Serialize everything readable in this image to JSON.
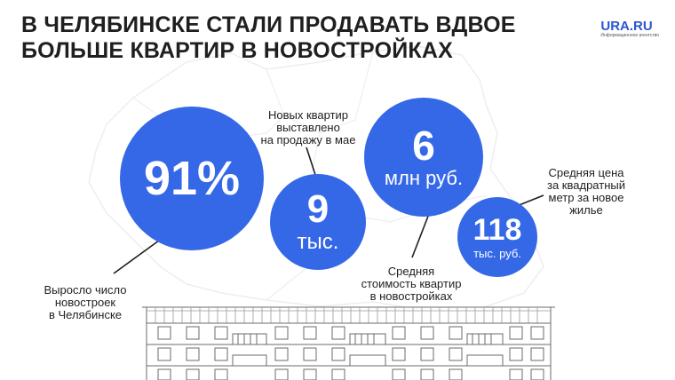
{
  "header": {
    "title_line1": "В ЧЕЛЯБИНСКЕ СТАЛИ ПРОДАВАТЬ ВДВОЕ",
    "title_line2": "БОЛЬШЕ КВАРТИР В НОВОСТРОЙКАХ"
  },
  "logo": {
    "name": "URA.RU",
    "tagline": "Информационное агентство"
  },
  "stats": [
    {
      "value": "91%",
      "unit": "",
      "caption": [
        "Выросло число",
        "новостроек",
        "в Челябинске"
      ]
    },
    {
      "value": "9",
      "unit": "тыс.",
      "caption": [
        "Новых квартир",
        "выставлено",
        "на продажу в мае"
      ]
    },
    {
      "value": "6",
      "unit": "млн руб.",
      "caption": [
        "Средняя",
        "стоимость квартир",
        "в новостройках"
      ]
    },
    {
      "value": "118",
      "unit": "тыс. руб.",
      "caption": [
        "Средняя цена",
        "за квадратный",
        "метр за новое",
        "жилье"
      ]
    }
  ],
  "colors": {
    "accent": "#3568e7",
    "text": "#1f1f1f",
    "logo": "#2b55d3"
  },
  "decor": {
    "background": "map-outline",
    "foreground": "apartment-building-illustration"
  }
}
